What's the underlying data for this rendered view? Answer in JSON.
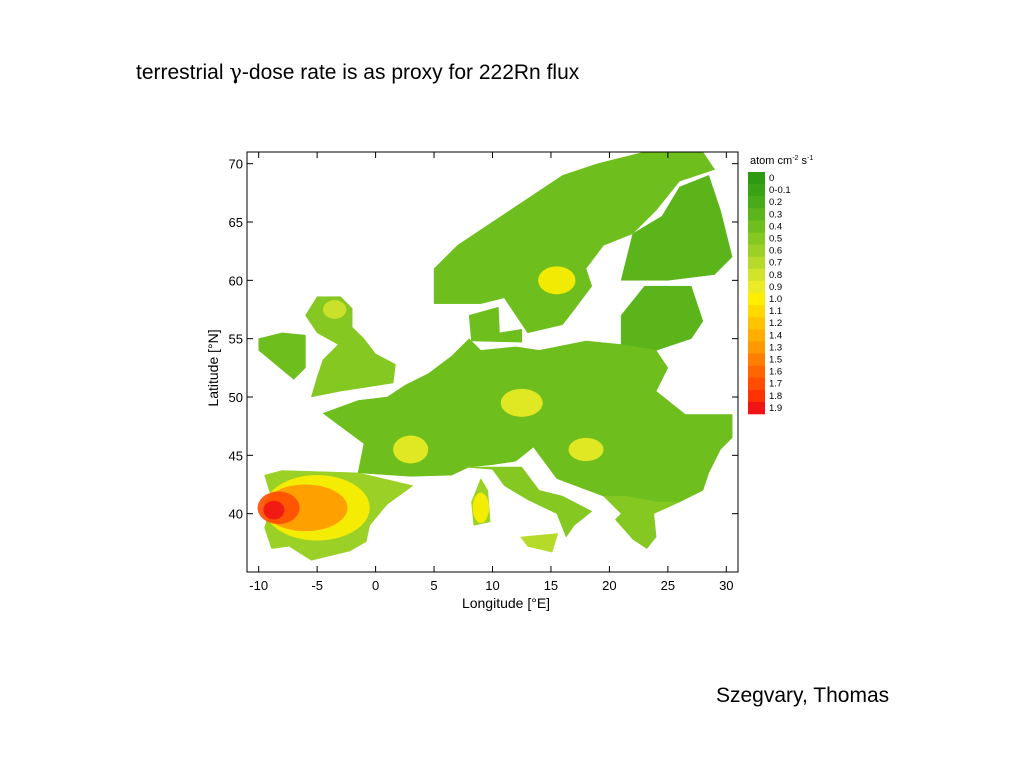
{
  "slide": {
    "title_before": "terrestrial ",
    "title_symbol": "γ",
    "title_after": "-dose rate is as proxy for 222Rn flux",
    "author": "Szegvary, Thomas"
  },
  "map": {
    "xlabel": "Longitude [°E]",
    "ylabel": "Latitude [°N]",
    "xlim": [
      -11,
      31
    ],
    "ylim": [
      35,
      71
    ],
    "x_ticks": [
      -10,
      -5,
      0,
      5,
      10,
      15,
      20,
      25,
      30
    ],
    "y_ticks": [
      40,
      45,
      50,
      55,
      60,
      65,
      70
    ],
    "legend": {
      "title_base": "atom cm",
      "title_exp1": "-2",
      "title_mid": " s",
      "title_exp2": "-1",
      "classes": [
        {
          "label": "0",
          "color": "#2e9a14"
        },
        {
          "label": "0-0.1",
          "color": "#3aa315"
        },
        {
          "label": "0.2",
          "color": "#49ab17"
        },
        {
          "label": "0.3",
          "color": "#5bb51a"
        },
        {
          "label": "0.4",
          "color": "#6ebe1d"
        },
        {
          "label": "0.5",
          "color": "#84c821"
        },
        {
          "label": "0.6",
          "color": "#9bd126"
        },
        {
          "label": "0.7",
          "color": "#b6da2a"
        },
        {
          "label": "0.8",
          "color": "#d2e32c"
        },
        {
          "label": "0.9",
          "color": "#ecec26"
        },
        {
          "label": "1.0",
          "color": "#ffee00"
        },
        {
          "label": "1.1",
          "color": "#ffd900"
        },
        {
          "label": "1.2",
          "color": "#ffc400"
        },
        {
          "label": "1.4",
          "color": "#ffae00"
        },
        {
          "label": "1.3",
          "color": "#ff9900"
        },
        {
          "label": "1.5",
          "color": "#ff8000"
        },
        {
          "label": "1.6",
          "color": "#ff6600"
        },
        {
          "label": "1.7",
          "color": "#ff4d00"
        },
        {
          "label": "1.8",
          "color": "#ff3300"
        },
        {
          "label": "1.9",
          "color": "#f01515"
        }
      ]
    }
  }
}
